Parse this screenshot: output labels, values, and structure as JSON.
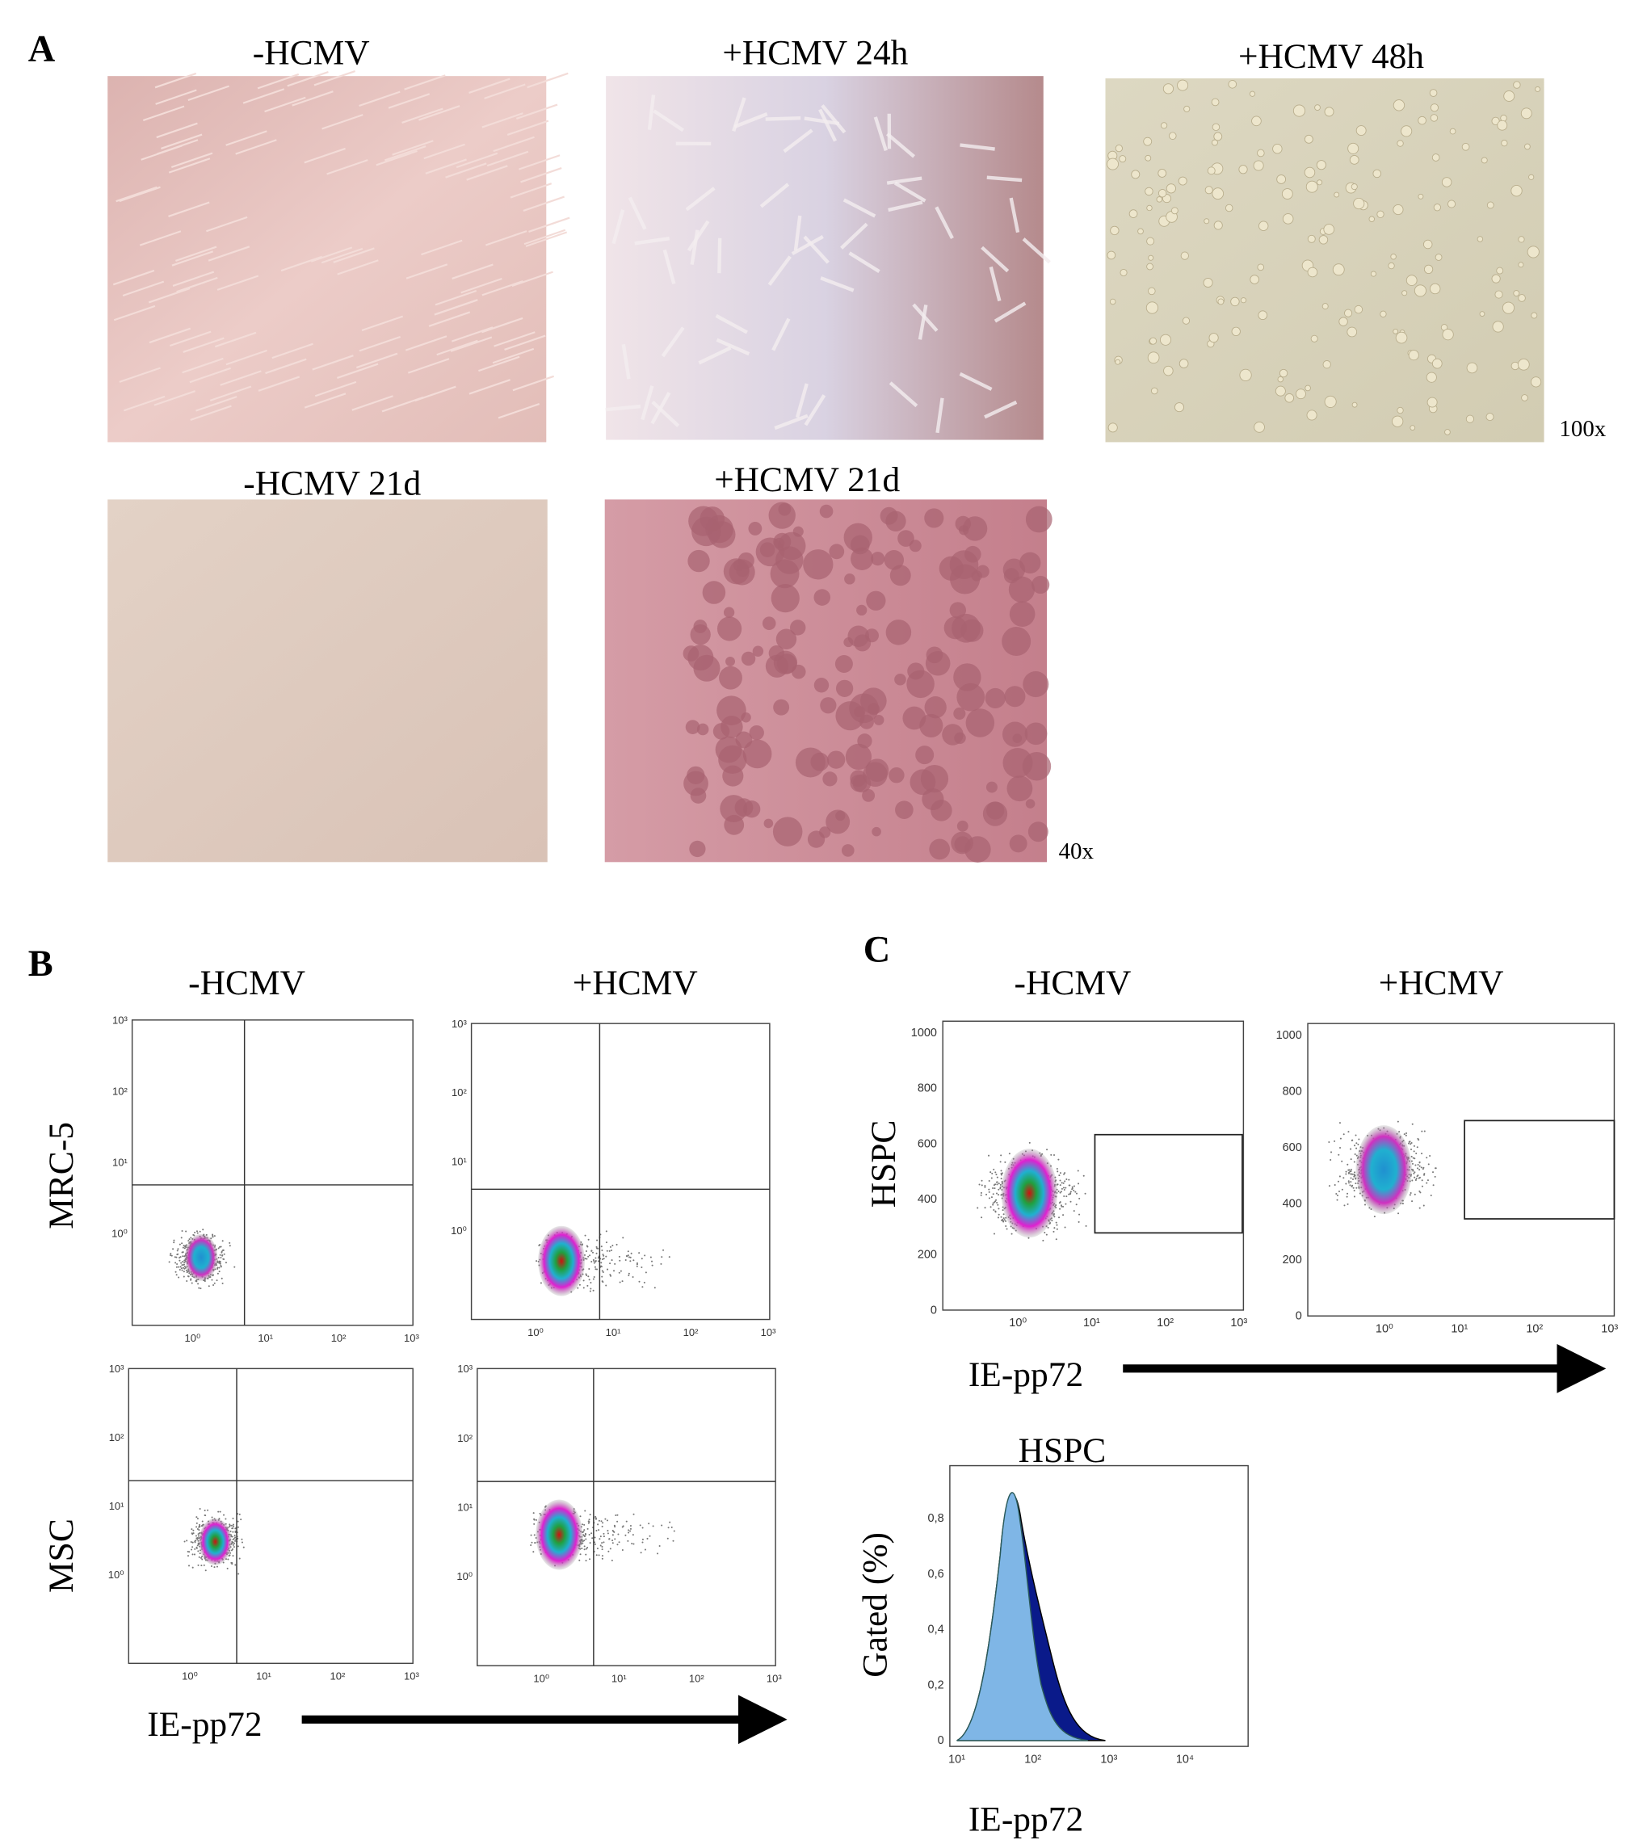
{
  "panel_a": {
    "label": "A",
    "images": [
      {
        "title": "-HCMV"
      },
      {
        "title": "+HCMV 24h"
      },
      {
        "title": "+HCMV 48h"
      },
      {
        "title": "-HCMV 21d"
      },
      {
        "title": "+HCMV 21d"
      }
    ],
    "magnifications": [
      "100x",
      "40x"
    ]
  },
  "panel_b": {
    "label": "B",
    "columns": [
      "-HCMV",
      "+HCMV"
    ],
    "rows": [
      "MRC-5",
      "MSC"
    ],
    "log_ticks": [
      "10⁰",
      "10¹",
      "10²",
      "10³"
    ],
    "x_axis_label": "IE-pp72"
  },
  "panel_c": {
    "label": "C",
    "columns": [
      "-HCMV",
      "+HCMV"
    ],
    "row_label": "HSPC",
    "y_ticks": [
      "0",
      "200",
      "400",
      "600",
      "800",
      "1000"
    ],
    "x_ticks": [
      "10⁰",
      "10¹",
      "10²",
      "10³"
    ],
    "x_axis_label": "IE-pp72",
    "histogram": {
      "title": "HSPC",
      "y_label": "Gated (%)",
      "y_ticks": [
        "0",
        "0,2",
        "0,4",
        "0,6",
        "0,8"
      ],
      "x_ticks": [
        "10¹",
        "10²",
        "10³",
        "10⁴"
      ],
      "x_label": "IE-pp72"
    }
  }
}
